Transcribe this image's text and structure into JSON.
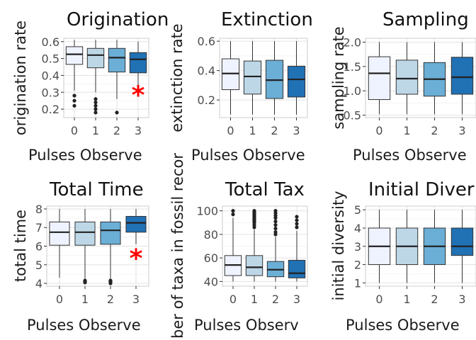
{
  "chart_data": [
    {
      "type": "boxplot",
      "title": "Origination",
      "xlabel": "Pulses Observe",
      "ylabel": "origination rate",
      "ylim": [
        0.15,
        0.62
      ],
      "yticks": [
        "0.2",
        "0.3",
        "0.4",
        "0.5",
        "0.6"
      ],
      "categories": [
        "0",
        "1",
        "2",
        "3"
      ],
      "boxes": [
        {
          "whisker_low": 0.31,
          "q1": 0.465,
          "median": 0.525,
          "q3": 0.57,
          "whisker_high": 0.61,
          "outliers": [
            0.28,
            0.25,
            0.22
          ]
        },
        {
          "whisker_low": 0.3,
          "q1": 0.445,
          "median": 0.52,
          "q3": 0.56,
          "whisker_high": 0.61,
          "outliers": [
            0.26,
            0.24,
            0.22,
            0.2,
            0.18
          ]
        },
        {
          "whisker_low": 0.26,
          "q1": 0.42,
          "median": 0.505,
          "q3": 0.56,
          "whisker_high": 0.61,
          "outliers": [
            0.18
          ]
        },
        {
          "whisker_low": 0.29,
          "q1": 0.415,
          "median": 0.495,
          "q3": 0.535,
          "whisker_high": 0.6,
          "outliers": []
        }
      ],
      "marker": {
        "category": "3",
        "value": 0.295,
        "symbol": "*",
        "color": "#ff0000"
      },
      "fills": [
        "#eff3ff",
        "#bdd7e7",
        "#6baed6",
        "#2171b5"
      ]
    },
    {
      "type": "boxplot",
      "title": "Extinction",
      "xlabel": "Pulses Observe",
      "ylabel": "extinction rate",
      "ylim": [
        0.08,
        0.62
      ],
      "yticks": [
        "0.2",
        "0.4",
        "0.6"
      ],
      "categories": [
        "0",
        "1",
        "2",
        "3"
      ],
      "boxes": [
        {
          "whisker_low": 0.1,
          "q1": 0.27,
          "median": 0.38,
          "q3": 0.48,
          "whisker_high": 0.6,
          "outliers": []
        },
        {
          "whisker_low": 0.1,
          "q1": 0.24,
          "median": 0.36,
          "q3": 0.465,
          "whisker_high": 0.6,
          "outliers": []
        },
        {
          "whisker_low": 0.1,
          "q1": 0.21,
          "median": 0.335,
          "q3": 0.47,
          "whisker_high": 0.6,
          "outliers": []
        },
        {
          "whisker_low": 0.1,
          "q1": 0.22,
          "median": 0.34,
          "q3": 0.43,
          "whisker_high": 0.6,
          "outliers": []
        }
      ],
      "fills": [
        "#eff3ff",
        "#bdd7e7",
        "#6baed6",
        "#2171b5"
      ]
    },
    {
      "type": "boxplot",
      "title": "Sampling",
      "xlabel": "Pulses Observe",
      "ylabel": "sampling rate",
      "ylim": [
        0.45,
        2.08
      ],
      "yticks": [
        "0.5",
        "1.0",
        "1.5",
        "2.0"
      ],
      "categories": [
        "0",
        "1",
        "2",
        "3"
      ],
      "boxes": [
        {
          "whisker_low": 0.52,
          "q1": 0.82,
          "median": 1.36,
          "q3": 1.7,
          "whisker_high": 2.0,
          "outliers": []
        },
        {
          "whisker_low": 0.52,
          "q1": 0.93,
          "median": 1.25,
          "q3": 1.63,
          "whisker_high": 2.0,
          "outliers": []
        },
        {
          "whisker_low": 0.52,
          "q1": 0.89,
          "median": 1.24,
          "q3": 1.58,
          "whisker_high": 2.0,
          "outliers": []
        },
        {
          "whisker_low": 0.52,
          "q1": 0.93,
          "median": 1.28,
          "q3": 1.69,
          "whisker_high": 2.0,
          "outliers": []
        }
      ],
      "fills": [
        "#eff3ff",
        "#bdd7e7",
        "#6baed6",
        "#2171b5"
      ]
    },
    {
      "type": "boxplot",
      "title": "Total Time",
      "xlabel": "Pulses Observe",
      "ylabel": "total time",
      "ylim": [
        3.85,
        8.15
      ],
      "yticks": [
        "4",
        "5",
        "6",
        "7",
        "8"
      ],
      "categories": [
        "0",
        "1",
        "2",
        "3"
      ],
      "boxes": [
        {
          "whisker_low": 4.3,
          "q1": 6.05,
          "median": 6.75,
          "q3": 7.3,
          "whisker_high": 8.0,
          "outliers": []
        },
        {
          "whisker_low": 4.25,
          "q1": 6.05,
          "median": 6.75,
          "q3": 7.3,
          "whisker_high": 8.0,
          "outliers": [
            4.15,
            4.1,
            4.05
          ]
        },
        {
          "whisker_low": 4.25,
          "q1": 6.1,
          "median": 6.85,
          "q3": 7.3,
          "whisker_high": 8.0,
          "outliers": [
            4.15,
            4.1,
            4.05,
            4.0
          ]
        },
        {
          "whisker_low": 6.1,
          "q1": 6.75,
          "median": 7.25,
          "q3": 7.6,
          "whisker_high": 8.0,
          "outliers": []
        }
      ],
      "marker": {
        "category": "3",
        "value": 5.45,
        "symbol": "*",
        "color": "#ff0000"
      },
      "fills": [
        "#eff3ff",
        "#bdd7e7",
        "#6baed6",
        "#2171b5"
      ]
    },
    {
      "type": "boxplot",
      "title": "Total Tax",
      "xlabel": "Pulses Observ",
      "ylabel": "ber of taxa in fossil recor",
      "ylim": [
        36,
        104
      ],
      "yticks": [
        "40",
        "60",
        "80",
        "100"
      ],
      "categories": [
        "0",
        "1",
        "2",
        "3"
      ],
      "boxes": [
        {
          "whisker_low": 40,
          "q1": 45,
          "median": 54,
          "q3": 62,
          "whisker_high": 94,
          "outliers": [
            100,
            97
          ]
        },
        {
          "whisker_low": 40,
          "q1": 45,
          "median": 52,
          "q3": 62,
          "whisker_high": 84,
          "outliers": [
            100,
            99,
            98,
            97,
            96,
            95,
            94,
            93,
            92,
            91,
            90,
            88,
            86
          ]
        },
        {
          "whisker_low": 40,
          "q1": 44,
          "median": 50,
          "q3": 57,
          "whisker_high": 78,
          "outliers": [
            100,
            98,
            96,
            94,
            91,
            88,
            85,
            82,
            80
          ]
        },
        {
          "whisker_low": 40,
          "q1": 43,
          "median": 47,
          "q3": 58,
          "whisker_high": 83,
          "outliers": [
            95,
            92,
            89,
            86
          ]
        }
      ],
      "fills": [
        "#eff3ff",
        "#bdd7e7",
        "#6baed6",
        "#2171b5"
      ]
    },
    {
      "type": "boxplot",
      "title": "Initial Diver",
      "xlabel": "Pulses Observe",
      "ylabel": "initial diversity",
      "ylim": [
        0.82,
        5.2
      ],
      "yticks": [
        "1",
        "2",
        "3",
        "4",
        "5"
      ],
      "categories": [
        "0",
        "1",
        "2",
        "3"
      ],
      "boxes": [
        {
          "whisker_low": 1,
          "q1": 2,
          "median": 3,
          "q3": 4,
          "whisker_high": 5,
          "outliers": []
        },
        {
          "whisker_low": 1,
          "q1": 2,
          "median": 3,
          "q3": 4,
          "whisker_high": 5,
          "outliers": []
        },
        {
          "whisker_low": 1,
          "q1": 2,
          "median": 3,
          "q3": 4,
          "whisker_high": 5,
          "outliers": []
        },
        {
          "whisker_low": 1,
          "q1": 2.5,
          "median": 3,
          "q3": 4,
          "whisker_high": 5,
          "outliers": []
        }
      ],
      "fills": [
        "#eff3ff",
        "#bdd7e7",
        "#6baed6",
        "#2171b5"
      ]
    }
  ]
}
